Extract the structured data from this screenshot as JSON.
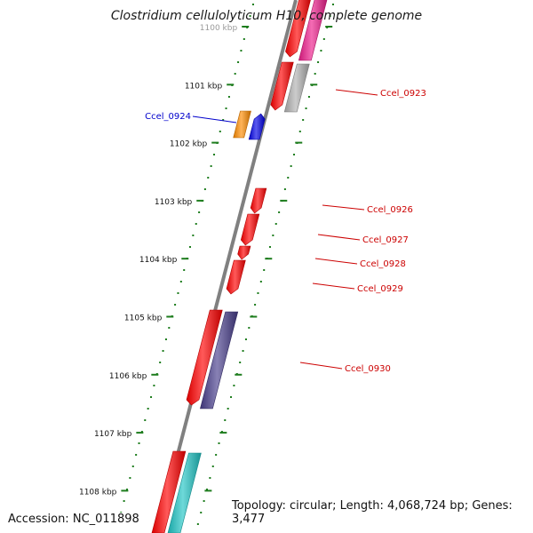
{
  "title": "Clostridium cellulolyticum H10, complete genome",
  "footer": {
    "accession_label": "Accession:",
    "accession": "NC_011898",
    "topology_label": "Topology:",
    "topology": "circular",
    "length_label": "Length:",
    "length": "4,068,724 bp",
    "genes_label": "Genes:",
    "genes": "3,477"
  },
  "ruler": {
    "ticks": [
      "1100 kbp",
      "1101 kbp",
      "1102 kbp",
      "1103 kbp",
      "1104 kbp",
      "1105 kbp",
      "1106 kbp",
      "1107 kbp",
      "1108 kbp"
    ],
    "color": "#1e7d1e"
  },
  "backbone_color": "#808080",
  "genes": [
    {
      "id": "g-top-1",
      "color": "#ff0000",
      "label": ""
    },
    {
      "id": "g-top-2",
      "color": "#ee1d8c",
      "label": ""
    },
    {
      "id": "g-0922",
      "color": "#ff0000",
      "label": ""
    },
    {
      "id": "g-0923",
      "color": "#b0b0b0",
      "label": "Ccel_0923"
    },
    {
      "id": "g-0924a",
      "color": "#ff8c00",
      "label": ""
    },
    {
      "id": "g-0924b",
      "color": "#0000e6",
      "label": "Ccel_0924"
    },
    {
      "id": "g-0926",
      "color": "#ff0000",
      "label": "Ccel_0926"
    },
    {
      "id": "g-0927",
      "color": "#ff0000",
      "label": "Ccel_0927"
    },
    {
      "id": "g-0928",
      "color": "#ff0000",
      "label": "Ccel_0928"
    },
    {
      "id": "g-0929",
      "color": "#ff0000",
      "label": "Ccel_0929"
    },
    {
      "id": "g-0930a",
      "color": "#ff0000",
      "label": ""
    },
    {
      "id": "g-0930b",
      "color": "#483d8b",
      "label": "Ccel_0930"
    },
    {
      "id": "g-bot-1",
      "color": "#ff0000",
      "label": ""
    },
    {
      "id": "g-bot-2",
      "color": "#20c5c5",
      "label": ""
    }
  ],
  "label_colors": {
    "forward": "#0000cc",
    "reverse": "#cc0000"
  }
}
